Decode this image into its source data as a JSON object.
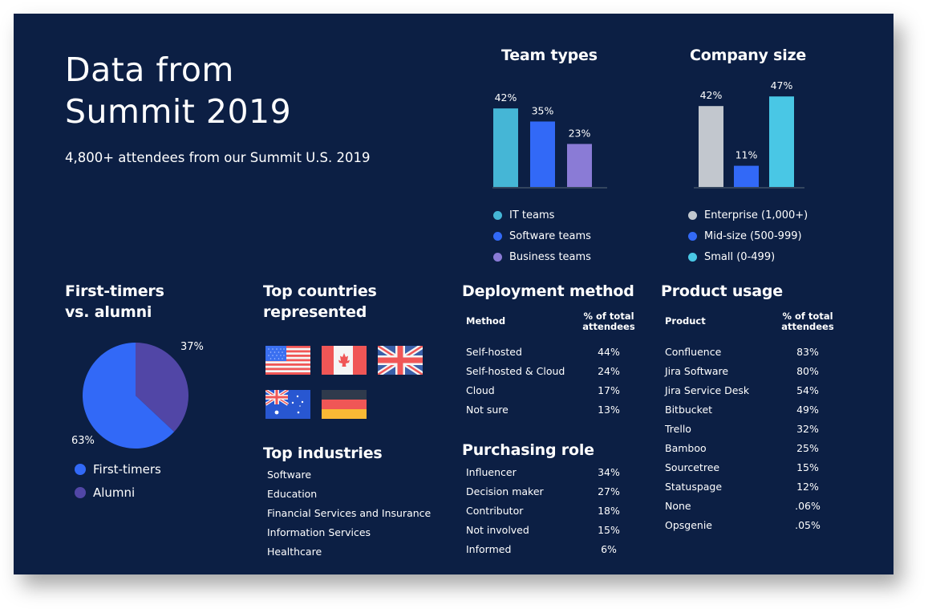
{
  "header": {
    "title_line1": "Data from",
    "title_line2": "Summit 2019",
    "subtitle": "4,800+ attendees from our Summit U.S. 2019"
  },
  "colors": {
    "background": "#0c1f44",
    "it_teams": "#45b6d6",
    "software_teams": "#3269f7",
    "business_teams": "#8a7bd6",
    "enterprise": "#c2c7ce",
    "mid_size": "#3269f7",
    "small": "#49c7e5",
    "first_timers": "#3269f7",
    "alumni": "#5146a6",
    "baseline": "#33455e"
  },
  "chart_data": [
    {
      "type": "bar",
      "title": "Team types",
      "categories": [
        "IT teams",
        "Software teams",
        "Business teams"
      ],
      "values": [
        42,
        35,
        23
      ],
      "value_labels": [
        "42%",
        "35%",
        "23%"
      ],
      "ylim": [
        0,
        50
      ],
      "legend": "bottom",
      "grid": false
    },
    {
      "type": "bar",
      "title": "Company size",
      "categories": [
        "Enterprise (1,000+)",
        "Mid-size (500-999)",
        "Small (0-499)"
      ],
      "values": [
        42,
        11,
        47
      ],
      "value_labels": [
        "42%",
        "11%",
        "47%"
      ],
      "ylim": [
        0,
        50
      ],
      "legend": "bottom",
      "grid": false
    },
    {
      "type": "pie",
      "title": "First-timers vs. alumni",
      "categories": [
        "First-timers",
        "Alumni"
      ],
      "values": [
        63,
        37
      ],
      "value_labels": [
        "63%",
        "37%"
      ],
      "legend": "bottom"
    },
    {
      "type": "table",
      "title": "Deployment method",
      "columns": [
        "Method",
        "% of total attendees"
      ],
      "rows": [
        [
          "Self-hosted",
          "44%"
        ],
        [
          "Self-hosted & Cloud",
          "24%"
        ],
        [
          "Cloud",
          "17%"
        ],
        [
          "Not sure",
          "13%"
        ]
      ]
    },
    {
      "type": "table",
      "title": "Purchasing role",
      "rows": [
        [
          "Influencer",
          "34%"
        ],
        [
          "Decision maker",
          "27%"
        ],
        [
          "Contributor",
          "18%"
        ],
        [
          "Not involved",
          "15%"
        ],
        [
          "Informed",
          "6%"
        ]
      ]
    },
    {
      "type": "table",
      "title": "Product usage",
      "columns": [
        "Product",
        "% of total attendees"
      ],
      "rows": [
        [
          "Confluence",
          "83%"
        ],
        [
          "Jira Software",
          "80%"
        ],
        [
          "Jira Service Desk",
          "54%"
        ],
        [
          "Bitbucket",
          "49%"
        ],
        [
          "Trello",
          "32%"
        ],
        [
          "Bamboo",
          "25%"
        ],
        [
          "Sourcetree",
          "15%"
        ],
        [
          "Statuspage",
          "12%"
        ],
        [
          "None",
          ".06%"
        ],
        [
          "Opsgenie",
          ".05%"
        ]
      ]
    }
  ],
  "team_types": {
    "title": "Team types",
    "legend": [
      "IT teams",
      "Software teams",
      "Business teams"
    ]
  },
  "company_size": {
    "title": "Company size",
    "legend": [
      "Enterprise (1,000+)",
      "Mid-size (500-999)",
      "Small (0-499)"
    ]
  },
  "first_timers": {
    "title_line1": "First-timers",
    "title_line2": "vs. alumni",
    "label_first": "63%",
    "label_alumni": "37%",
    "legend": [
      "First-timers",
      "Alumni"
    ]
  },
  "countries": {
    "title_line1": "Top countries",
    "title_line2": "represented",
    "flags": [
      "united-states-flag",
      "canada-flag",
      "united-kingdom-flag",
      "australia-flag",
      "germany-flag"
    ]
  },
  "industries": {
    "title": "Top industries",
    "items": [
      "Software",
      "Education",
      "Financial Services and Insurance",
      "Information Services",
      "Healthcare"
    ]
  },
  "deployment": {
    "title": "Deployment method",
    "col1": "Method",
    "col2_line1": "% of total",
    "col2_line2": "attendees",
    "rows": [
      {
        "label": "Self-hosted",
        "value": "44%"
      },
      {
        "label": "Self-hosted & Cloud",
        "value": "24%"
      },
      {
        "label": "Cloud",
        "value": "17%"
      },
      {
        "label": "Not sure",
        "value": "13%"
      }
    ]
  },
  "purchasing": {
    "title": "Purchasing role",
    "rows": [
      {
        "label": "Influencer",
        "value": "34%"
      },
      {
        "label": "Decision maker",
        "value": "27%"
      },
      {
        "label": "Contributor",
        "value": "18%"
      },
      {
        "label": "Not involved",
        "value": "15%"
      },
      {
        "label": "Informed",
        "value": "6%"
      }
    ]
  },
  "product_usage": {
    "title": "Product usage",
    "col1": "Product",
    "col2_line1": "% of total",
    "col2_line2": "attendees",
    "rows": [
      {
        "label": "Confluence",
        "value": "83%"
      },
      {
        "label": "Jira Software",
        "value": "80%"
      },
      {
        "label": "Jira Service Desk",
        "value": "54%"
      },
      {
        "label": "Bitbucket",
        "value": "49%"
      },
      {
        "label": "Trello",
        "value": "32%"
      },
      {
        "label": "Bamboo",
        "value": "25%"
      },
      {
        "label": "Sourcetree",
        "value": "15%"
      },
      {
        "label": "Statuspage",
        "value": "12%"
      },
      {
        "label": "None",
        "value": ".06%"
      },
      {
        "label": "Opsgenie",
        "value": ".05%"
      }
    ]
  }
}
